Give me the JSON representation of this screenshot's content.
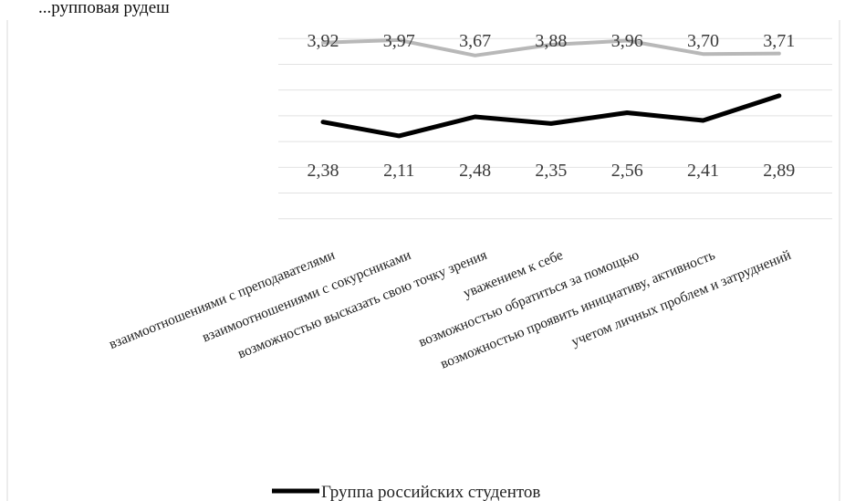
{
  "header_text": "...рупповая рудеш",
  "chart_data": {
    "type": "line",
    "categories": [
      "взаимоотношениями с преподавателями",
      "взаимоотношениями с сокурсниками",
      "возможностью высказать свою точку зрения",
      "уважением к себе",
      "возможностью обратиться за помощью",
      "возможностью проявить инициативу, активность",
      "учетом личных проблем и затруднений"
    ],
    "series": [
      {
        "name": "",
        "color": "#b8b8b8",
        "values": [
          3.92,
          3.97,
          3.67,
          3.88,
          3.96,
          3.7,
          3.71
        ],
        "labels": [
          "3,92",
          "3,97",
          "3,67",
          "3,88",
          "3,96",
          "3,70",
          "3,71"
        ],
        "label_position": "above"
      },
      {
        "name": "Группа российских студентов",
        "color": "#000000",
        "values": [
          2.38,
          2.11,
          2.48,
          2.35,
          2.56,
          2.41,
          2.89
        ],
        "labels": [
          "2,38",
          "2,11",
          "2,48",
          "2,35",
          "2,56",
          "2,41",
          "2,89"
        ],
        "label_position": "below"
      }
    ],
    "ylim": [
      0,
      4.5
    ],
    "grid": true,
    "legend": "bottom"
  }
}
